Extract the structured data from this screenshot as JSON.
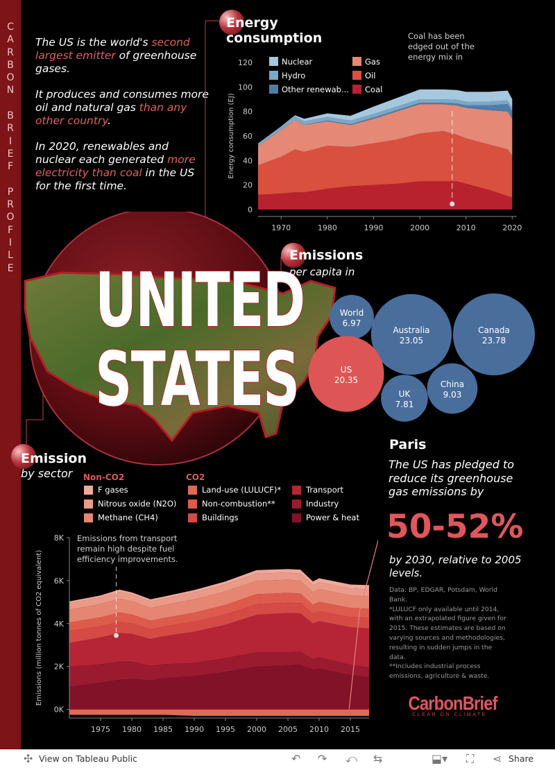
{
  "sidebar": {
    "text": "C\nA\nR\nB\nO\nN\n\nB\nR\nI\nE\nF\n\nP\nR\nO\nF\nI\nL\nE"
  },
  "intro": {
    "p1_a": "The US is the world's ",
    "p1_hl": "second largest emitter",
    "p1_b": " of greenhouse gases.",
    "p2_a": "It produces and consumes more oil and natural gas ",
    "p2_hl": "than any other country",
    "p2_b": ".",
    "p3_a": "In 2020, renewables and nuclear each generated ",
    "p3_hl": "more electricity than coal",
    "p3_b": " in the US for the first time."
  },
  "country_title": {
    "line1": "UNITED",
    "line2": "STATES"
  },
  "energy": {
    "title_line1": "Energy",
    "title_line2": "consumption",
    "annotation": "Coal has been edged out of the energy mix in"
  },
  "emissions_pc": {
    "title": "Emissions",
    "subtitle": "per capita in"
  },
  "sector": {
    "title": "Emission",
    "subtitle": "by sector",
    "annotation": "Emissions from transport remain high despite fuel efficiency improvements.",
    "group_nonco2": "Non-CO2",
    "group_co2": "CO2"
  },
  "paris": {
    "title": "Paris",
    "text": "The US has pledged to reduce its greenhouse gas emissions by",
    "pct": "50-52%",
    "base": "by 2030, relative to 2005 levels."
  },
  "notes": {
    "text": "Data: BP, EDGAR, Potsdam, World Bank.\n*LULUCF only available until 2014, with an extrapolated figure given for 2015. These estimates are based on varying sources and methodologies, resulting in sudden jumps in the data.\n**Includes industrial process emissions, agriculture & waste."
  },
  "logo": {
    "name": "CarbonBrief",
    "tagline": "CLEAR ON CLIMATE"
  },
  "footer": {
    "view_label": "View on Tableau Public",
    "share_label": "Share"
  },
  "colors": {
    "accent": "#e0565c",
    "sidebar": "#7d1418",
    "nuclear": "#a6c8df",
    "hydro": "#7ba7c9",
    "other_renew": "#4e7ea8",
    "gas": "#e58875",
    "oil": "#d9503f",
    "coal": "#b8222e",
    "bubble_blue": "#4a6e9c",
    "bubble_red": "#dd5555"
  },
  "chart_data": [
    {
      "type": "area",
      "name": "energy_consumption",
      "ylabel": "Energy consumption (EJ)",
      "ylim": [
        0,
        120
      ],
      "yticks": [
        0,
        20,
        40,
        60,
        80,
        100,
        120
      ],
      "xticks": [
        1970,
        1980,
        1990,
        2000,
        2010,
        2020
      ],
      "xlim": [
        1965,
        2021
      ],
      "legend_placement": "top-left",
      "x": [
        1965,
        1970,
        1973,
        1975,
        1980,
        1985,
        1990,
        1995,
        2000,
        2005,
        2008,
        2010,
        2015,
        2019,
        2020
      ],
      "series": [
        {
          "name": "Coal",
          "values": [
            12,
            13,
            14,
            14,
            17,
            19,
            20,
            21,
            23,
            23,
            23,
            21,
            16,
            11,
            10
          ]
        },
        {
          "name": "Oil",
          "values": [
            24,
            30,
            35,
            33,
            35,
            32,
            34,
            36,
            39,
            41,
            38,
            37,
            37,
            38,
            34
          ]
        },
        {
          "name": "Gas",
          "values": [
            16,
            22,
            24,
            22,
            20,
            18,
            20,
            23,
            24,
            22,
            24,
            25,
            28,
            31,
            30
          ]
        },
        {
          "name": "Other renewab...",
          "values": [
            0,
            0,
            0,
            0,
            0.5,
            0.5,
            1,
            1,
            1,
            1,
            1.5,
            2,
            4,
            6,
            6
          ]
        },
        {
          "name": "Hydro",
          "values": [
            2,
            2.7,
            2.9,
            3,
            3,
            3,
            3,
            3,
            3,
            3,
            3,
            3,
            3,
            3,
            3
          ]
        },
        {
          "name": "Nuclear",
          "values": [
            0,
            0.2,
            1,
            2,
            3,
            4,
            6,
            7,
            8,
            8,
            8,
            8,
            8,
            8,
            7
          ]
        }
      ]
    },
    {
      "type": "bubble",
      "name": "emissions_per_capita",
      "unit": "tCO2e per person",
      "points": [
        {
          "label": "World",
          "value": 6.97,
          "highlight": false
        },
        {
          "label": "Australia",
          "value": 23.05,
          "highlight": false
        },
        {
          "label": "Canada",
          "value": 23.78,
          "highlight": false
        },
        {
          "label": "US",
          "value": 20.35,
          "highlight": true
        },
        {
          "label": "China",
          "value": 9.03,
          "highlight": false
        },
        {
          "label": "UK",
          "value": 7.81,
          "highlight": false
        }
      ]
    },
    {
      "type": "area",
      "name": "emissions_by_sector",
      "ylabel": "Emissions (million tonnes of CO2 equivalent)",
      "ylim": [
        -400,
        8000
      ],
      "yticks": [
        0,
        2000,
        4000,
        6000,
        8000
      ],
      "ytick_labels": [
        "0K",
        "2K",
        "4K",
        "6K",
        "8K"
      ],
      "xticks": [
        1975,
        1980,
        1985,
        1990,
        1995,
        2000,
        2005,
        2010,
        2015
      ],
      "xlim": [
        1970,
        2018
      ],
      "x": [
        1970,
        1975,
        1978,
        1980,
        1983,
        1985,
        1990,
        1995,
        2000,
        2005,
        2007,
        2009,
        2010,
        2015,
        2018
      ],
      "series": [
        {
          "name": "Land-use (LULUCF)*",
          "group": "CO2",
          "values": [
            -250,
            -250,
            -250,
            -250,
            -250,
            -250,
            -300,
            -300,
            -300,
            -300,
            -300,
            -300,
            -300,
            -300,
            -300
          ]
        },
        {
          "name": "Power & heat",
          "group": "CO2",
          "values": [
            1050,
            1250,
            1380,
            1420,
            1350,
            1450,
            1550,
            1750,
            2000,
            2050,
            2080,
            1850,
            1900,
            1600,
            1500
          ]
        },
        {
          "name": "Industry",
          "group": "CO2",
          "values": [
            950,
            850,
            850,
            800,
            680,
            650,
            620,
            640,
            660,
            620,
            600,
            500,
            530,
            480,
            470
          ]
        },
        {
          "name": "Transport",
          "group": "CO2",
          "values": [
            1100,
            1250,
            1330,
            1300,
            1250,
            1300,
            1450,
            1550,
            1750,
            1820,
            1800,
            1650,
            1680,
            1750,
            1800
          ]
        },
        {
          "name": "Buildings",
          "group": "CO2",
          "values": [
            550,
            520,
            520,
            480,
            450,
            450,
            470,
            480,
            490,
            480,
            470,
            460,
            470,
            470,
            490
          ]
        },
        {
          "name": "Non-combustion**",
          "group": "CO2",
          "values": [
            400,
            420,
            440,
            420,
            400,
            400,
            420,
            450,
            470,
            460,
            450,
            420,
            430,
            430,
            430
          ]
        },
        {
          "name": "Methane (CH4)",
          "group": "Non-CO2",
          "values": [
            600,
            620,
            640,
            620,
            600,
            600,
            620,
            630,
            620,
            610,
            600,
            580,
            590,
            580,
            580
          ]
        },
        {
          "name": "Nitrous oxide (N2O)",
          "group": "Non-CO2",
          "values": [
            300,
            310,
            320,
            310,
            300,
            300,
            320,
            330,
            340,
            330,
            330,
            320,
            320,
            320,
            320
          ]
        },
        {
          "name": "F gases",
          "group": "Non-CO2",
          "values": [
            80,
            90,
            100,
            100,
            100,
            100,
            110,
            130,
            160,
            170,
            180,
            180,
            190,
            190,
            200
          ]
        }
      ],
      "annotation": "Emissions from transport remain high despite fuel efficiency improvements."
    }
  ]
}
